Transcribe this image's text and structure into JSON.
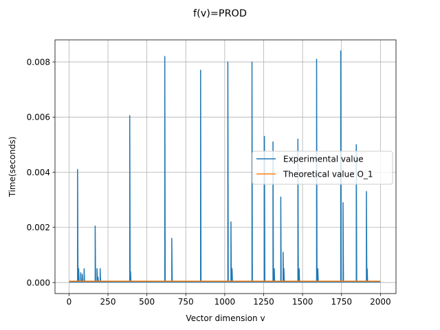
{
  "chart_data": {
    "type": "line",
    "title": "f(v)=PROD",
    "xlabel": "Vector dimension v",
    "ylabel": "Time(seconds)",
    "xlim": [
      -90,
      2100
    ],
    "ylim": [
      -0.0004,
      0.0088
    ],
    "x_ticks": [
      0,
      250,
      500,
      750,
      1000,
      1250,
      1500,
      1750,
      2000
    ],
    "x_tick_labels": [
      "0",
      "250",
      "500",
      "750",
      "1000",
      "1250",
      "1500",
      "1750",
      "2000"
    ],
    "y_ticks": [
      0,
      0.002,
      0.004,
      0.006,
      0.008
    ],
    "y_tick_labels": [
      "0.000",
      "0.002",
      "0.004",
      "0.006",
      "0.008"
    ],
    "grid": true,
    "legend_position": "center-right",
    "series": [
      {
        "name": "Experimental value",
        "color": "#1f77b4",
        "baseline": 2e-05,
        "x_range": [
          1,
          2000
        ],
        "spikes": [
          {
            "x": 55,
            "y": 0.0041
          },
          {
            "x": 62,
            "y": 0.0005
          },
          {
            "x": 75,
            "y": 0.00035
          },
          {
            "x": 85,
            "y": 0.0003
          },
          {
            "x": 97,
            "y": 0.0005
          },
          {
            "x": 168,
            "y": 0.00205
          },
          {
            "x": 180,
            "y": 0.0005
          },
          {
            "x": 186,
            "y": 0.0002
          },
          {
            "x": 200,
            "y": 0.0005
          },
          {
            "x": 390,
            "y": 0.00605
          },
          {
            "x": 395,
            "y": 0.0004
          },
          {
            "x": 615,
            "y": 0.0082
          },
          {
            "x": 660,
            "y": 0.0016
          },
          {
            "x": 845,
            "y": 0.0077
          },
          {
            "x": 1020,
            "y": 0.008
          },
          {
            "x": 1040,
            "y": 0.0022
          },
          {
            "x": 1047,
            "y": 0.0005
          },
          {
            "x": 1175,
            "y": 0.008
          },
          {
            "x": 1255,
            "y": 0.0053
          },
          {
            "x": 1310,
            "y": 0.0051
          },
          {
            "x": 1318,
            "y": 0.0005
          },
          {
            "x": 1360,
            "y": 0.0031
          },
          {
            "x": 1375,
            "y": 0.0011
          },
          {
            "x": 1380,
            "y": 0.0005
          },
          {
            "x": 1470,
            "y": 0.0052
          },
          {
            "x": 1478,
            "y": 0.0005
          },
          {
            "x": 1590,
            "y": 0.0081
          },
          {
            "x": 1598,
            "y": 0.0005
          },
          {
            "x": 1745,
            "y": 0.0084
          },
          {
            "x": 1760,
            "y": 0.0029
          },
          {
            "x": 1845,
            "y": 0.005
          },
          {
            "x": 1910,
            "y": 0.0033
          },
          {
            "x": 1915,
            "y": 0.0005
          }
        ]
      },
      {
        "name": "Theoretical value O_1",
        "color": "#ff7f0e",
        "x": [
          1,
          2000
        ],
        "y": [
          5e-05,
          5e-05
        ]
      }
    ]
  }
}
